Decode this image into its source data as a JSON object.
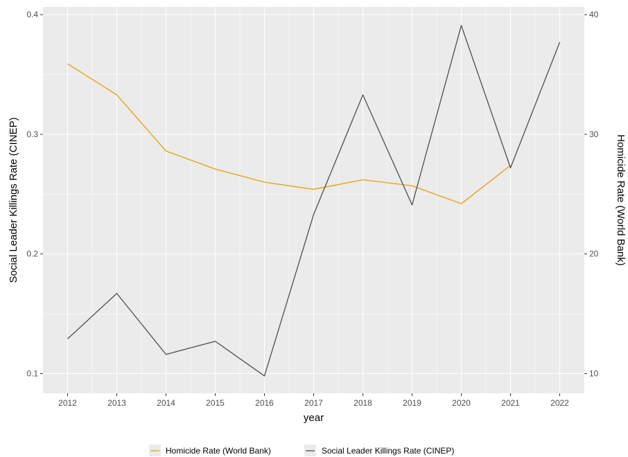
{
  "chart_data": {
    "type": "line",
    "x": [
      2012,
      2013,
      2014,
      2015,
      2016,
      2017,
      2018,
      2019,
      2020,
      2021,
      2022
    ],
    "xlabel": "year",
    "ylabel": "Social Leader Killings Rate (CINEP)",
    "y2label": "Homicide Rate (World Bank)",
    "ylim": [
      0.0835,
      0.4065
    ],
    "y_ticks": [
      0.1,
      0.2,
      0.3,
      0.4
    ],
    "y_tick_labels": [
      "0.1",
      "0.2",
      "0.3",
      "0.4"
    ],
    "y2lim": [
      8.35,
      40.65
    ],
    "y2_ticks": [
      10,
      20,
      30,
      40
    ],
    "y2_tick_labels": [
      "10",
      "20",
      "30",
      "40"
    ],
    "xlim": [
      2011.5,
      2022.5
    ],
    "grid": true,
    "legend_position": "bottom",
    "series": [
      {
        "name": "Homicide Rate (World Bank)",
        "color": "#E69F00",
        "axis": "left",
        "values": [
          0.359,
          0.333,
          0.286,
          0.271,
          0.26,
          0.254,
          0.262,
          0.257,
          0.242,
          0.274,
          null
        ]
      },
      {
        "name": "Social Leader Killings Rate (CINEP)",
        "color": "#4D4D4D",
        "axis": "left",
        "values": [
          0.129,
          0.167,
          0.116,
          0.127,
          0.098,
          0.233,
          0.333,
          0.241,
          0.391,
          0.272,
          0.377
        ]
      }
    ]
  }
}
